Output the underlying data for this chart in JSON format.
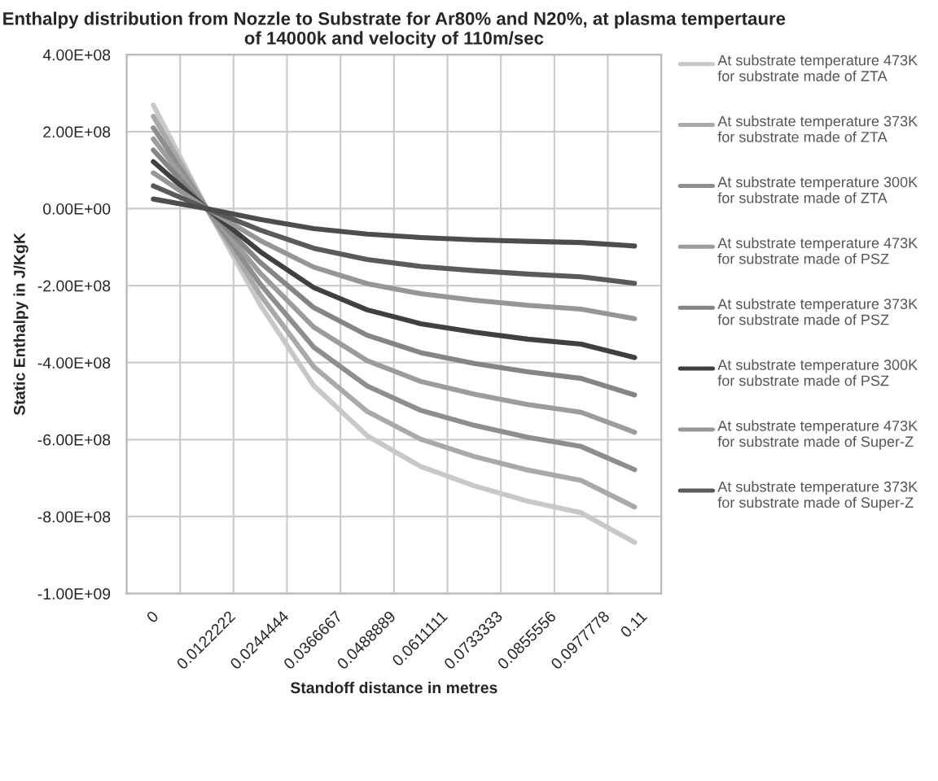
{
  "chart_data": {
    "type": "line",
    "title": "Enthalpy distribution from Nozzle to Substrate for Ar80% and N20%, at plasma tempertaure of 14000k and velocity of 110m/sec",
    "xlabel": "Standoff distance in metres",
    "ylabel": "Static Enthalpy in J/KgK",
    "categories": [
      "0",
      "0.0122222",
      "0.0244444",
      "0.0366667",
      "0.0488889",
      "0.0611111",
      "0.0733333",
      "0.0855556",
      "0.0977778",
      "0.11"
    ],
    "series": [
      {
        "name": "At substrate temperature 473K for substrate made of ZTA",
        "color": "#c8c8c8",
        "values": [
          269000000,
          0,
          -250000000,
          -460000000,
          -590000000,
          -670000000,
          -720000000,
          -760000000,
          -790000000,
          -867000000
        ]
      },
      {
        "name": "At substrate temperature 373K for substrate made of ZTA",
        "color": "#a9a9a9",
        "values": [
          240000000,
          0,
          -224000000,
          -411000000,
          -527000000,
          -599000000,
          -644000000,
          -679000000,
          -706000000,
          -775000000
        ]
      },
      {
        "name": "At substrate temperature 300K for substrate made of ZTA",
        "color": "#8e8e8e",
        "values": [
          210000000,
          0,
          -196000000,
          -360000000,
          -461000000,
          -524000000,
          -563000000,
          -594000000,
          -618000000,
          -678000000
        ]
      },
      {
        "name": "At substrate temperature 473K for substrate made of PSZ",
        "color": "#9c9c9c",
        "values": [
          181000000,
          0,
          -168000000,
          -308000000,
          -395000000,
          -449000000,
          -482000000,
          -509000000,
          -529000000,
          -581000000
        ]
      },
      {
        "name": "At substrate temperature 373K for substrate made of PSZ",
        "color": "#858585",
        "values": [
          152000000,
          0,
          -140000000,
          -257000000,
          -329000000,
          -374000000,
          -402000000,
          -424000000,
          -441000000,
          -484000000
        ]
      },
      {
        "name": "At substrate temperature 300K for substrate made of PSZ",
        "color": "#404040",
        "values": [
          122000000,
          0,
          -112000000,
          -205000000,
          -263000000,
          -299000000,
          -321000000,
          -339000000,
          -352000000,
          -387000000
        ]
      },
      {
        "name": "At substrate temperature 473K  for substrate made of Super-Z",
        "color": "#969696",
        "values": [
          93000000,
          0,
          -83000000,
          -152000000,
          -195000000,
          -221000000,
          -238000000,
          -251000000,
          -261000000,
          -286000000
        ]
      },
      {
        "name": "At substrate temperature 373K  for substrate made of Super-Z",
        "color": "#5a5a5a",
        "values": [
          59000000,
          0,
          -56000000,
          -103000000,
          -132000000,
          -150000000,
          -161000000,
          -170000000,
          -177000000,
          -194000000
        ]
      },
      {
        "color": "#4d4d4d",
        "values": [
          25000000,
          0,
          -28000000,
          -52000000,
          -66000000,
          -75000000,
          -81000000,
          -85000000,
          -88000000,
          -97000000
        ]
      }
    ],
    "ylim": [
      -1000000000,
      400000000
    ],
    "yticks": [
      {
        "value": -1000000000,
        "label": "-1.00E+09"
      },
      {
        "value": -800000000,
        "label": "-8.00E+08"
      },
      {
        "value": -600000000,
        "label": "-6.00E+08"
      },
      {
        "value": -400000000,
        "label": "-4.00E+08"
      },
      {
        "value": -200000000,
        "label": "-2.00E+08"
      },
      {
        "value": 0,
        "label": "0.00E+00"
      },
      {
        "value": 200000000,
        "label": "2.00E+08"
      },
      {
        "value": 400000000,
        "label": "4.00E+08"
      }
    ],
    "grid": true,
    "legend": "right",
    "marker": "none",
    "line_style": "solid"
  }
}
